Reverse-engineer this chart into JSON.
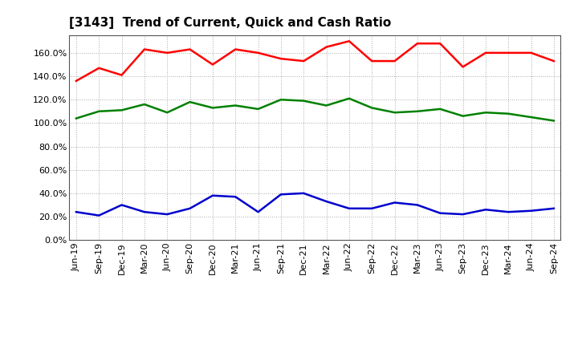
{
  "title": "[3143]  Trend of Current, Quick and Cash Ratio",
  "labels": [
    "Jun-19",
    "Sep-19",
    "Dec-19",
    "Mar-20",
    "Jun-20",
    "Sep-20",
    "Dec-20",
    "Mar-21",
    "Jun-21",
    "Sep-21",
    "Dec-21",
    "Mar-22",
    "Jun-22",
    "Sep-22",
    "Dec-22",
    "Mar-23",
    "Jun-23",
    "Sep-23",
    "Dec-23",
    "Mar-24",
    "Jun-24",
    "Sep-24"
  ],
  "current_ratio": [
    136,
    147,
    141,
    163,
    160,
    163,
    150,
    163,
    160,
    155,
    153,
    165,
    170,
    153,
    153,
    168,
    168,
    148,
    160,
    160,
    160,
    153
  ],
  "quick_ratio": [
    104,
    110,
    111,
    116,
    109,
    118,
    113,
    115,
    112,
    120,
    119,
    115,
    121,
    113,
    109,
    110,
    112,
    106,
    109,
    108,
    105,
    102
  ],
  "cash_ratio": [
    24,
    21,
    30,
    24,
    22,
    27,
    38,
    37,
    24,
    39,
    40,
    33,
    27,
    27,
    32,
    30,
    23,
    22,
    26,
    24,
    25,
    27
  ],
  "current_color": "#FF0000",
  "quick_color": "#008000",
  "cash_color": "#0000CD",
  "background_color": "#FFFFFF",
  "plot_bg_color": "#FFFFFF",
  "grid_color": "#AAAAAA",
  "ylim": [
    0,
    175
  ],
  "yticks": [
    0,
    20,
    40,
    60,
    80,
    100,
    120,
    140,
    160
  ],
  "line_width": 1.8
}
